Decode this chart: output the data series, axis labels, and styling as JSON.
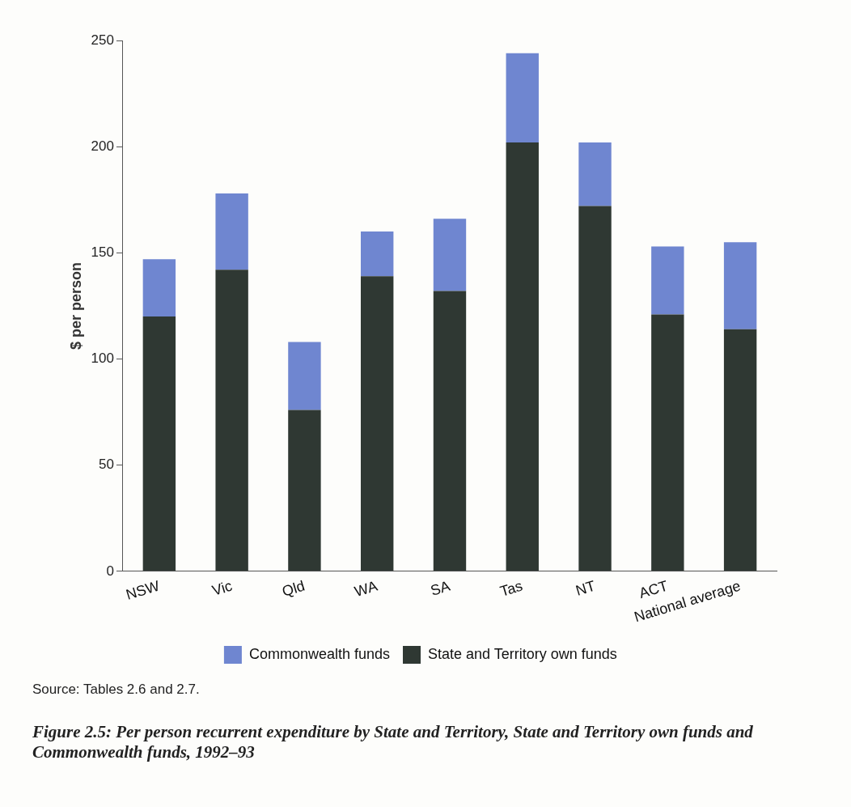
{
  "chart_data": {
    "type": "bar",
    "stacked": true,
    "title": "Figure 2.5: Per person recurrent expenditure by State and Territory, State and Territory own funds and Commonwealth funds, 1992–93",
    "ylabel": "$ per person",
    "categories": [
      "NSW",
      "Vic",
      "Qld",
      "WA",
      "SA",
      "Tas",
      "NT",
      "ACT",
      "National average"
    ],
    "series": [
      {
        "name": "State and Territory own funds",
        "color": "#2f3833",
        "values": [
          120,
          142,
          76,
          139,
          132,
          202,
          172,
          121,
          114
        ]
      },
      {
        "name": "Commonwealth funds",
        "color": "#6f86d0",
        "values": [
          27,
          36,
          32,
          21,
          34,
          42,
          30,
          32,
          41
        ]
      }
    ],
    "ylim": [
      0,
      250
    ],
    "yticks": [
      0,
      50,
      100,
      150,
      200,
      250
    ],
    "grid": false,
    "legend": "bottom",
    "annotations": [
      "Source: Tables 2.6 and 2.7."
    ]
  }
}
